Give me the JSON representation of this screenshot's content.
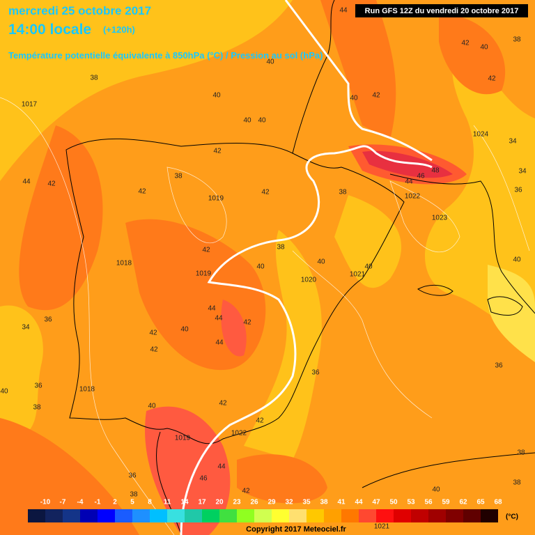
{
  "header": {
    "date": "mercredi 25 octobre 2017",
    "time": "14:00 locale",
    "lead": "(+120h)",
    "subtitle": "Température potentielle équivalente à 850hPa (°C) / Pression au sol (hPa)"
  },
  "run_label": "Run GFS 12Z du vendredi 20 octobre 2017",
  "map_labels": [
    "44",
    "42",
    "40",
    "38",
    "42",
    "42",
    "40",
    "40",
    "38",
    "40",
    "1017",
    "40",
    "40",
    "1024",
    "34",
    "42",
    "48",
    "46",
    "44",
    "34",
    "44",
    "42",
    "38",
    "42",
    "42",
    "38",
    "36",
    "1022",
    "1019",
    "1023",
    "38",
    "42",
    "40",
    "40",
    "1018",
    "1019",
    "1021",
    "40",
    "40",
    "1020",
    "44",
    "44",
    "42",
    "36",
    "34",
    "40",
    "42",
    "44",
    "42",
    "36",
    "36",
    "36",
    "40",
    "1018",
    "38",
    "42",
    "40",
    "42",
    "1019",
    "1022",
    "44",
    "38",
    "36",
    "38",
    "46",
    "40",
    "42",
    "38",
    "1021"
  ],
  "color_scale": {
    "ticks": [
      -10,
      -7,
      -4,
      -1,
      2,
      5,
      8,
      11,
      14,
      17,
      20,
      23,
      26,
      29,
      32,
      35,
      38,
      41,
      44,
      47,
      50,
      53,
      56,
      59,
      62,
      65,
      68
    ],
    "colors": [
      "#0b1640",
      "#12235e",
      "#143488",
      "#0000b4",
      "#0000ff",
      "#1a5cff",
      "#1e90ff",
      "#00bfff",
      "#38e0e0",
      "#20c8a8",
      "#00d060",
      "#40e040",
      "#90ff20",
      "#d0ff50",
      "#ffff30",
      "#ffe070",
      "#ffc800",
      "#ffa000",
      "#ff7800",
      "#ff4830",
      "#ff1010",
      "#e00000",
      "#c00000",
      "#a00000",
      "#800000",
      "#600000",
      "#200000"
    ],
    "unit": "(°C)"
  },
  "copyright": "Copyright 2017 Meteociel.fr"
}
